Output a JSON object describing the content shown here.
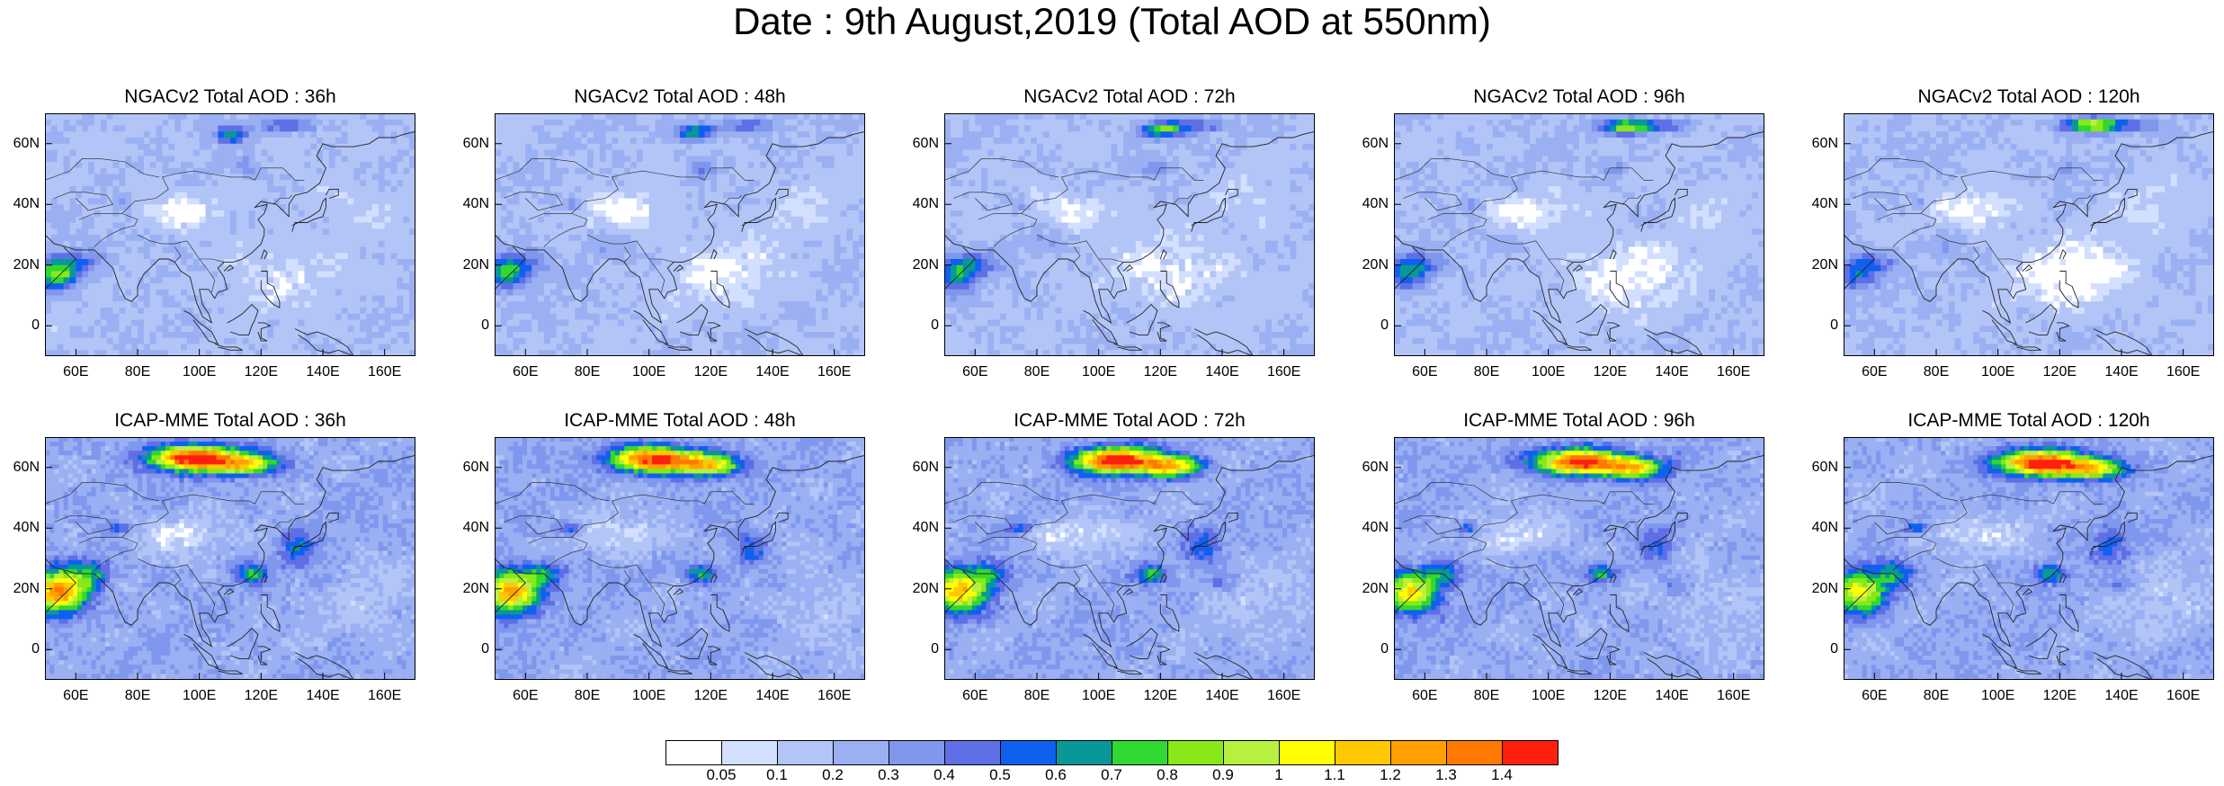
{
  "title": "Date : 9th August,2019 (Total AOD at 550nm)",
  "lat_ticks": [
    "60N",
    "40N",
    "20N",
    "0"
  ],
  "lon_ticks": [
    "60E",
    "80E",
    "100E",
    "120E",
    "140E",
    "160E"
  ],
  "panels": [
    {
      "title": "NGACv2 Total AOD : 36h",
      "model": "NGACv2",
      "lead": "36h"
    },
    {
      "title": "NGACv2 Total AOD : 48h",
      "model": "NGACv2",
      "lead": "48h"
    },
    {
      "title": "NGACv2 Total AOD : 72h",
      "model": "NGACv2",
      "lead": "72h"
    },
    {
      "title": "NGACv2 Total AOD : 96h",
      "model": "NGACv2",
      "lead": "96h"
    },
    {
      "title": "NGACv2 Total AOD : 120h",
      "model": "NGACv2",
      "lead": "120h"
    },
    {
      "title": "ICAP-MME Total AOD : 36h",
      "model": "ICAP-MME",
      "lead": "36h"
    },
    {
      "title": "ICAP-MME Total AOD : 48h",
      "model": "ICAP-MME",
      "lead": "48h"
    },
    {
      "title": "ICAP-MME Total AOD : 72h",
      "model": "ICAP-MME",
      "lead": "72h"
    },
    {
      "title": "ICAP-MME Total AOD : 96h",
      "model": "ICAP-MME",
      "lead": "96h"
    },
    {
      "title": "ICAP-MME Total AOD : 120h",
      "model": "ICAP-MME",
      "lead": "120h"
    }
  ],
  "colorbar": {
    "colors": [
      "#ffffff",
      "#d3dfff",
      "#b3c5f7",
      "#9ab0f2",
      "#8097ee",
      "#5f6fe6",
      "#1060f0",
      "#089898",
      "#30d830",
      "#88e818",
      "#b8f040",
      "#ffff00",
      "#ffc800",
      "#ffa000",
      "#ff7800",
      "#ff2010"
    ],
    "labels": [
      "0.05",
      "0.1",
      "0.2",
      "0.3",
      "0.4",
      "0.5",
      "0.6",
      "0.7",
      "0.8",
      "0.9",
      "1",
      "1.1",
      "1.2",
      "1.3",
      "1.4"
    ]
  }
}
